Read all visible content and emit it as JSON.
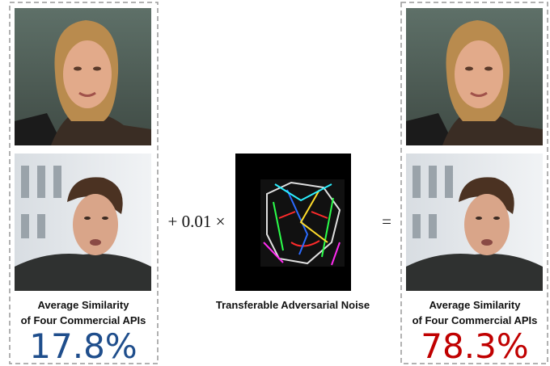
{
  "left": {
    "caption_line1": "Average Similarity",
    "caption_line2": "of Four Commercial APIs",
    "score": "17.8%"
  },
  "operator_plus": "+ 0.01 ×",
  "noise_caption": "Transferable Adversarial Noise",
  "operator_equals": "=",
  "right": {
    "caption_line1": "Average Similarity",
    "caption_line2": "of Four Commercial APIs",
    "score": "78.3%"
  }
}
